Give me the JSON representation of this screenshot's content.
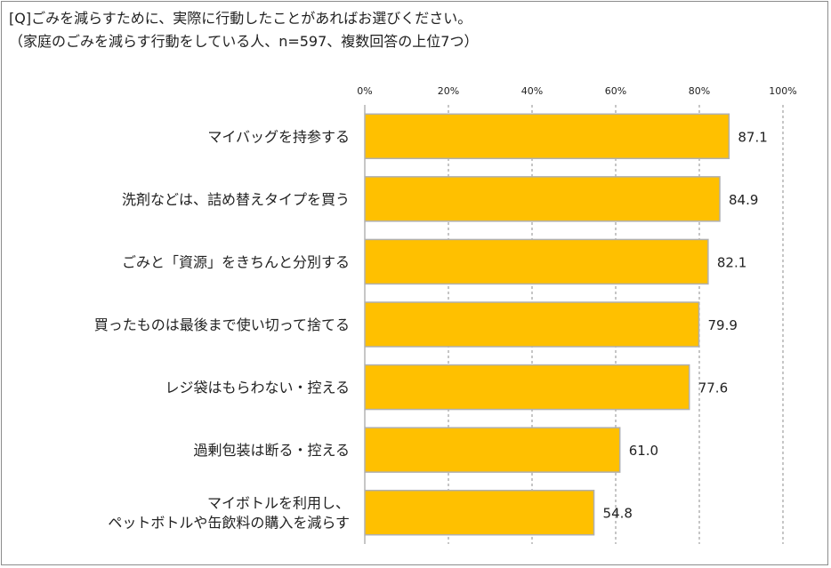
{
  "title": "[Q]ごみを減らすために、実際に行動したことがあればお選びください。",
  "subtitle": "（家庭のごみを減らす行動をしている人、n=597、複数回答の上位7つ）",
  "colors": {
    "bar": "#FFC000",
    "bar_border": "#B0B0B0",
    "grid": "#8c8c8c"
  },
  "chart_data": {
    "type": "bar",
    "orientation": "horizontal",
    "xlim": [
      0,
      100
    ],
    "ticks": [
      0,
      20,
      40,
      60,
      80,
      100
    ],
    "tick_labels": [
      "0%",
      "20%",
      "40%",
      "60%",
      "80%",
      "100%"
    ],
    "grid": true,
    "categories": [
      [
        "マイバッグを持参する"
      ],
      [
        "洗剤などは、詰め替えタイプを買う"
      ],
      [
        "ごみと「資源」をきちんと分別する"
      ],
      [
        "買ったものは最後まで使い切って捨てる"
      ],
      [
        "レジ袋はもらわない・控える"
      ],
      [
        "過剰包装は断る・控える"
      ],
      [
        "マイボトルを利用し、",
        "ペットボトルや缶飲料の購入を減らす"
      ]
    ],
    "values": [
      87.1,
      84.9,
      82.1,
      79.9,
      77.6,
      61.0,
      54.8
    ],
    "value_labels": [
      "87.1",
      "84.9",
      "82.1",
      "79.9",
      "77.6",
      "61.0",
      "54.8"
    ]
  }
}
